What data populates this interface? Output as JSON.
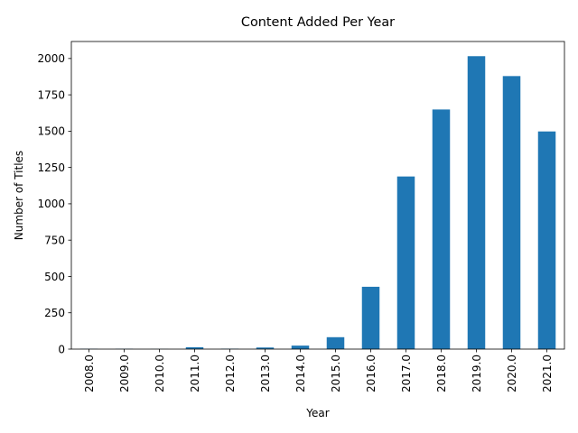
{
  "chart_data": {
    "type": "bar",
    "title": "Content Added Per Year",
    "xlabel": "Year",
    "ylabel": "Number of Titles",
    "categories": [
      "2008.0",
      "2009.0",
      "2010.0",
      "2011.0",
      "2012.0",
      "2013.0",
      "2014.0",
      "2015.0",
      "2016.0",
      "2017.0",
      "2018.0",
      "2019.0",
      "2020.0",
      "2021.0"
    ],
    "values": [
      2,
      2,
      1,
      13,
      3,
      11,
      24,
      82,
      429,
      1188,
      1649,
      2016,
      1879,
      1498
    ],
    "yticks": [
      0,
      250,
      500,
      750,
      1000,
      1250,
      1500,
      1750,
      2000
    ],
    "ylim": [
      0,
      2117
    ],
    "bar_color": "#1f77b4",
    "grid": false,
    "legend": "none"
  }
}
